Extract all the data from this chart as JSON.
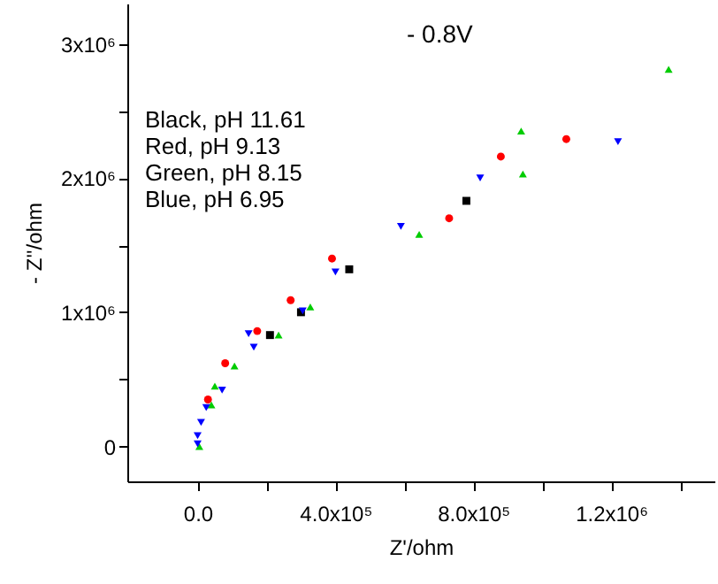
{
  "chart_data": {
    "type": "scatter",
    "xlabel": "Z'/ohm",
    "ylabel": "- Z''/ohm",
    "annotations": [
      "- 0.8V",
      "Black, pH 11.61",
      "Red, pH 9.13",
      "Green, pH 8.15",
      "Blue, pH 6.95"
    ],
    "xlim": [
      -204000,
      1500000
    ],
    "ylim": [
      -260000,
      3300000
    ],
    "xticks": [
      {
        "value": 0,
        "label": "0.0"
      },
      {
        "value": 200000,
        "label": null
      },
      {
        "value": 400000,
        "label": "4.0x10⁵"
      },
      {
        "value": 600000,
        "label": null
      },
      {
        "value": 800000,
        "label": "8.0x10⁵"
      },
      {
        "value": 1000000,
        "label": null
      },
      {
        "value": 1200000,
        "label": "1.2x10⁶"
      },
      {
        "value": 1400000,
        "label": null
      }
    ],
    "yticks": [
      0,
      {
        "value": 500000,
        "label": null
      },
      {
        "value": 1000000,
        "label": "1x10⁶"
      },
      {
        "value": 1500000,
        "label": null
      },
      {
        "value": 2000000,
        "label": "2x10⁶"
      },
      {
        "value": 2500000,
        "label": null
      },
      {
        "value": 3000000,
        "label": "3x10⁶"
      }
    ],
    "grid": false,
    "legend": false,
    "series": [
      {
        "color": "#000000",
        "marker": "square",
        "x": [
          780000,
          440000,
          300000,
          210000
        ],
        "values": [
          1830000,
          1320000,
          1000000,
          830000
        ]
      },
      {
        "color": "#ff0000",
        "marker": "circle",
        "x": [
          1070000,
          880000,
          730000,
          390000,
          270000,
          173000,
          80000,
          30000
        ],
        "values": [
          2290000,
          2160000,
          1700000,
          1400000,
          1090000,
          860000,
          620000,
          350000
        ]
      },
      {
        "color": "#00cc00",
        "marker": "triangle",
        "x": [
          1367000,
          939000,
          944000,
          643000,
          327000,
          235000,
          107000,
          50000,
          40000,
          5000
        ],
        "values": [
          2810000,
          2350000,
          2030000,
          1580000,
          1040000,
          830000,
          600000,
          450000,
          310000,
          0
        ]
      },
      {
        "color": "#0000ff",
        "marker": "triangle-down",
        "x": [
          1220000,
          820000,
          590000,
          400000,
          305000,
          148000,
          163000,
          71000,
          25000,
          10000,
          0,
          0
        ],
        "values": [
          2270000,
          2000000,
          1640000,
          1300000,
          1010000,
          840000,
          740000,
          420000,
          290000,
          180000,
          80000,
          20000
        ]
      }
    ]
  }
}
